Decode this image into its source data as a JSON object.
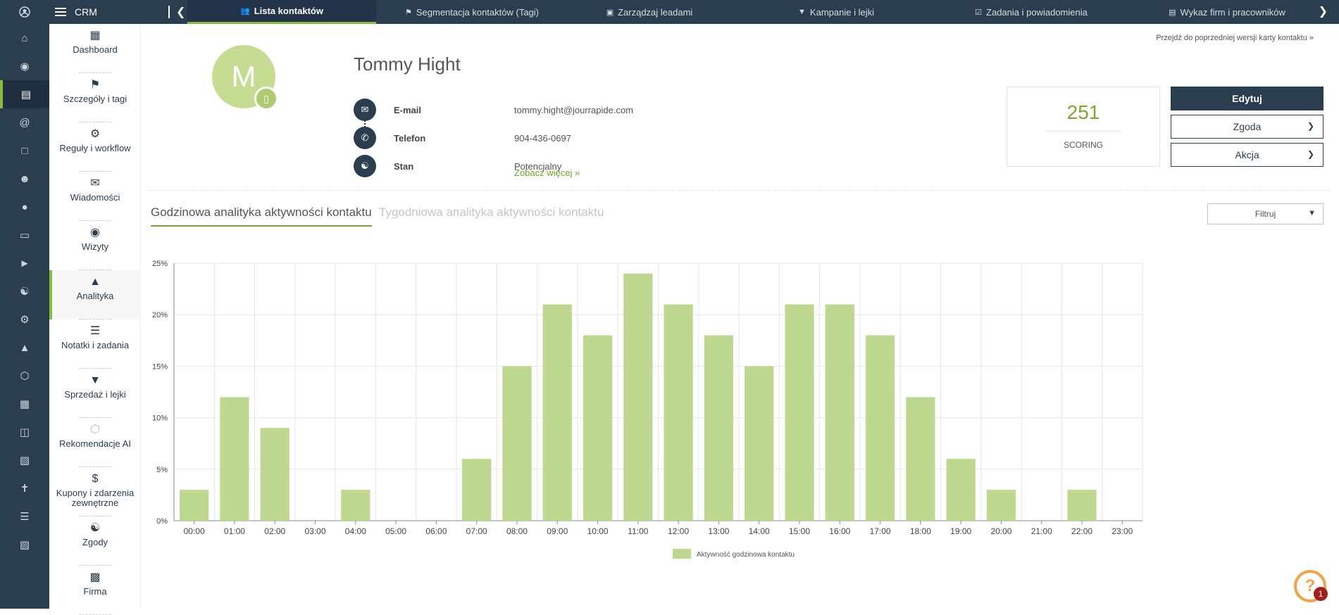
{
  "topnav": {
    "app_name": "CRM",
    "tabs": [
      {
        "label": "Lista kontaktów",
        "icon": "users-icon"
      },
      {
        "label": "Segmentacja kontaktów (Tagi)",
        "icon": "tag-icon"
      },
      {
        "label": "Zarządzaj leadami",
        "icon": "id-card-icon"
      },
      {
        "label": "Kampanie i lejki",
        "icon": "funnel-icon"
      },
      {
        "label": "Zadania i powiadomienia",
        "icon": "checkbox-icon"
      },
      {
        "label": "Wykaz firm i pracowników",
        "icon": "briefcase-icon"
      }
    ]
  },
  "iconbar": [
    "user-circle-icon",
    "home-icon",
    "eye-icon",
    "contact-card-icon",
    "at-icon",
    "square-icon",
    "user-plus-icon",
    "chat-icon",
    "monitor-icon",
    "megaphone-icon",
    "users-icon",
    "gears-icon",
    "area-chart-icon",
    "ai-icon",
    "calendar-icon",
    "database-icon",
    "files-icon",
    "wrench-icon",
    "sliders-icon",
    "translate-icon"
  ],
  "sidenav": [
    {
      "label": "Dashboard",
      "icon": "grid-icon"
    },
    {
      "label": "Szczegóły i tagi",
      "icon": "tags-icon"
    },
    {
      "label": "Reguły i workflow",
      "icon": "gears-icon"
    },
    {
      "label": "Wiadomości",
      "icon": "envelope-open-icon"
    },
    {
      "label": "Wizyty",
      "icon": "eye-icon"
    },
    {
      "label": "Analityka",
      "icon": "area-chart-icon"
    },
    {
      "label": "Notatki i zadania",
      "icon": "list-icon"
    },
    {
      "label": "Sprzedaż i lejki",
      "icon": "funnel-icon"
    },
    {
      "label": "Rekomendacje AI",
      "icon": "ai-icon"
    },
    {
      "label": "Kupony i zdarzenia zewnętrzne",
      "icon": "dollar-icon"
    },
    {
      "label": "Zgody",
      "icon": "handshake-icon"
    },
    {
      "label": "Firma",
      "icon": "building-icon"
    }
  ],
  "contact": {
    "initial": "M",
    "name": "Tommy Hight",
    "fields": [
      {
        "label": "E-mail",
        "value": "tommy.hight@jourrapide.com",
        "icon": "envelope-icon"
      },
      {
        "label": "Telefon",
        "value": "904-436-0697",
        "icon": "phone-icon"
      },
      {
        "label": "Stan",
        "value": "Potencjalny",
        "icon": "users-icon"
      }
    ],
    "see_more": "Zobacz więcej »",
    "prev_version": "Przejdź do poprzedniej wersji karty kontaktu »"
  },
  "score": {
    "value": "251",
    "label": "SCORING"
  },
  "actions": {
    "edit": "Edytuj",
    "consent": "Zgoda",
    "action": "Akcja"
  },
  "analytics": {
    "tab_hourly": "Godzinowa analityka aktywności kontaktu",
    "tab_weekly": "Tygodniowa analityka aktywności kontaktu",
    "filter": "Filtruj"
  },
  "help": {
    "badge": "1",
    "glyph": "?"
  },
  "chart_data": {
    "type": "bar",
    "categories": [
      "00:00",
      "01:00",
      "02:00",
      "03:00",
      "04:00",
      "05:00",
      "06:00",
      "07:00",
      "08:00",
      "09:00",
      "10:00",
      "11:00",
      "12:00",
      "13:00",
      "14:00",
      "15:00",
      "16:00",
      "17:00",
      "18:00",
      "19:00",
      "20:00",
      "21:00",
      "22:00",
      "23:00"
    ],
    "series": [
      {
        "name": "Aktywność godzinowa kontaktu",
        "values": [
          3,
          12,
          9,
          0,
          3,
          0,
          0,
          6,
          15,
          21,
          18,
          24,
          21,
          18,
          15,
          21,
          21,
          18,
          12,
          6,
          3,
          0,
          3,
          0
        ]
      }
    ],
    "ylim": [
      0,
      25
    ],
    "yticks": [
      "0%",
      "5%",
      "10%",
      "15%",
      "20%",
      "25%"
    ],
    "color": "#bfd88f",
    "grid": true,
    "legend": "bottom"
  }
}
